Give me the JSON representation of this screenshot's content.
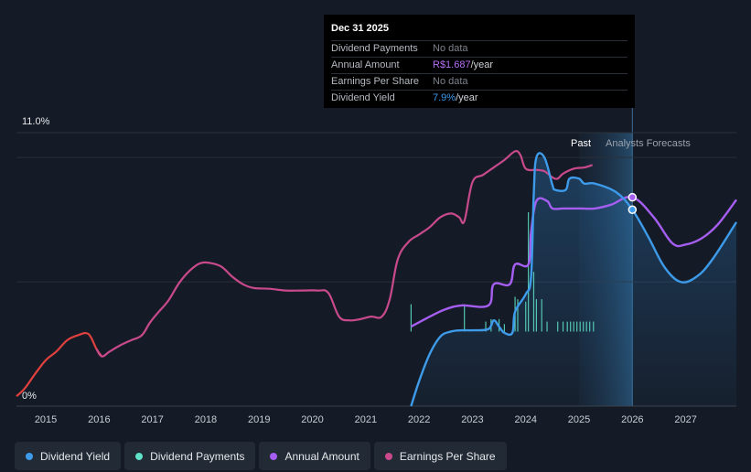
{
  "tooltip": {
    "date": "Dec 31 2025",
    "rows": [
      {
        "name": "Dividend Payments",
        "value": "No data"
      },
      {
        "name": "Annual Amount",
        "value": "R$1.687",
        "suffix": "/year",
        "accent": "#b46ff5"
      },
      {
        "name": "Earnings Per Share",
        "value": "No data"
      },
      {
        "name": "Dividend Yield",
        "value": "7.9%",
        "suffix": "/year",
        "accent": "#3d9bea"
      }
    ]
  },
  "regions": {
    "past": "Past",
    "forecast": "Analysts Forecasts"
  },
  "legend": [
    {
      "label": "Dividend Yield",
      "color": "#3d9bea"
    },
    {
      "label": "Dividend Payments",
      "color": "#5fe3c8"
    },
    {
      "label": "Annual Amount",
      "color": "#a65ef2"
    },
    {
      "label": "Earnings Per Share",
      "color": "#c94a8c"
    }
  ],
  "chart_data": {
    "type": "line",
    "y_axis": {
      "min": 0,
      "max": 11,
      "unit": "%",
      "labels": [
        "11.0%",
        "0%"
      ]
    },
    "x_axis": {
      "min": 2014.45,
      "max": 2027.95,
      "ticks": [
        "2015",
        "2016",
        "2017",
        "2018",
        "2019",
        "2020",
        "2021",
        "2022",
        "2023",
        "2024",
        "2025",
        "2026",
        "2027"
      ]
    },
    "past_until": 2025.0,
    "cursor_x": 2026.0,
    "series": [
      {
        "name": "Dividend Yield",
        "color": "#3d9bea",
        "points": [
          [
            2021.85,
            0
          ],
          [
            2022.0,
            1.0
          ],
          [
            2022.2,
            2.1
          ],
          [
            2022.4,
            2.8
          ],
          [
            2022.6,
            3.0
          ],
          [
            2022.8,
            3.05
          ],
          [
            2023.0,
            3.05
          ],
          [
            2023.3,
            3.1
          ],
          [
            2023.4,
            3.45
          ],
          [
            2023.5,
            3.2
          ],
          [
            2023.6,
            2.95
          ],
          [
            2023.75,
            2.95
          ],
          [
            2023.8,
            3.8
          ],
          [
            2024.0,
            4.5
          ],
          [
            2024.1,
            5.2
          ],
          [
            2024.15,
            8.5
          ],
          [
            2024.2,
            10.0
          ],
          [
            2024.35,
            10.0
          ],
          [
            2024.5,
            8.9
          ],
          [
            2024.55,
            8.7
          ],
          [
            2024.75,
            8.7
          ],
          [
            2024.82,
            9.15
          ],
          [
            2025.0,
            9.15
          ],
          [
            2025.1,
            8.95
          ],
          [
            2025.3,
            8.95
          ],
          [
            2025.7,
            8.6
          ],
          [
            2026.0,
            7.9
          ],
          [
            2026.3,
            6.8
          ],
          [
            2026.6,
            5.6
          ],
          [
            2026.9,
            5.0
          ],
          [
            2027.2,
            5.2
          ],
          [
            2027.5,
            5.9
          ],
          [
            2027.95,
            7.4
          ]
        ]
      },
      {
        "name": "Annual Amount",
        "color": "#a65ef2",
        "points": [
          [
            2021.85,
            3.2
          ],
          [
            2022.2,
            3.6
          ],
          [
            2022.5,
            3.9
          ],
          [
            2022.8,
            4.05
          ],
          [
            2023.3,
            4.05
          ],
          [
            2023.4,
            4.9
          ],
          [
            2023.7,
            4.9
          ],
          [
            2023.8,
            5.7
          ],
          [
            2024.05,
            5.7
          ],
          [
            2024.1,
            7.0
          ],
          [
            2024.2,
            8.25
          ],
          [
            2024.4,
            8.25
          ],
          [
            2024.5,
            7.95
          ],
          [
            2024.7,
            7.95
          ],
          [
            2025.0,
            7.95
          ],
          [
            2025.3,
            7.95
          ],
          [
            2025.6,
            8.1
          ],
          [
            2026.0,
            8.4
          ],
          [
            2026.4,
            7.6
          ],
          [
            2026.75,
            6.55
          ],
          [
            2027.0,
            6.5
          ],
          [
            2027.3,
            6.75
          ],
          [
            2027.6,
            7.3
          ],
          [
            2027.95,
            8.3
          ]
        ]
      },
      {
        "name": "Earnings Per Share",
        "color": "#c94a8c",
        "points": [
          [
            2014.45,
            0.4
          ],
          [
            2014.6,
            0.7
          ],
          [
            2014.8,
            1.3
          ],
          [
            2015.0,
            1.85
          ],
          [
            2015.2,
            2.2
          ],
          [
            2015.4,
            2.65
          ],
          [
            2015.6,
            2.85
          ],
          [
            2015.8,
            2.9
          ],
          [
            2015.95,
            2.3
          ],
          [
            2016.05,
            2.0
          ],
          [
            2016.2,
            2.2
          ],
          [
            2016.4,
            2.45
          ],
          [
            2016.6,
            2.65
          ],
          [
            2016.8,
            2.85
          ],
          [
            2016.95,
            3.35
          ],
          [
            2017.1,
            3.75
          ],
          [
            2017.3,
            4.25
          ],
          [
            2017.5,
            4.95
          ],
          [
            2017.7,
            5.45
          ],
          [
            2017.9,
            5.75
          ],
          [
            2018.1,
            5.75
          ],
          [
            2018.3,
            5.6
          ],
          [
            2018.5,
            5.2
          ],
          [
            2018.7,
            4.9
          ],
          [
            2018.9,
            4.75
          ],
          [
            2019.2,
            4.72
          ],
          [
            2019.5,
            4.65
          ],
          [
            2019.8,
            4.65
          ],
          [
            2020.1,
            4.65
          ],
          [
            2020.3,
            4.55
          ],
          [
            2020.5,
            3.6
          ],
          [
            2020.7,
            3.45
          ],
          [
            2020.9,
            3.5
          ],
          [
            2021.1,
            3.6
          ],
          [
            2021.3,
            3.6
          ],
          [
            2021.45,
            4.3
          ],
          [
            2021.6,
            5.9
          ],
          [
            2021.8,
            6.6
          ],
          [
            2022.0,
            6.9
          ],
          [
            2022.2,
            7.2
          ],
          [
            2022.4,
            7.6
          ],
          [
            2022.6,
            7.75
          ],
          [
            2022.75,
            7.6
          ],
          [
            2022.85,
            7.45
          ],
          [
            2023.0,
            9.0
          ],
          [
            2023.2,
            9.3
          ],
          [
            2023.4,
            9.6
          ],
          [
            2023.6,
            9.9
          ],
          [
            2023.8,
            10.25
          ],
          [
            2023.9,
            10.1
          ],
          [
            2024.0,
            9.55
          ],
          [
            2024.2,
            9.5
          ],
          [
            2024.35,
            9.45
          ],
          [
            2024.5,
            9.2
          ],
          [
            2024.6,
            9.15
          ],
          [
            2024.7,
            9.35
          ],
          [
            2024.9,
            9.55
          ],
          [
            2025.1,
            9.6
          ],
          [
            2025.25,
            9.7
          ]
        ]
      }
    ],
    "payments": {
      "name": "Dividend Payments",
      "color": "#5fe3c8",
      "bars": [
        [
          2021.85,
          4.1
        ],
        [
          2022.85,
          4.1
        ],
        [
          2023.25,
          3.4
        ],
        [
          2023.35,
          3.5
        ],
        [
          2023.5,
          3.5
        ],
        [
          2023.6,
          3.3
        ],
        [
          2023.8,
          4.4
        ],
        [
          2023.85,
          4.3
        ],
        [
          2024.0,
          4.2
        ],
        [
          2024.05,
          7.8
        ],
        [
          2024.15,
          5.4
        ],
        [
          2024.2,
          4.3
        ],
        [
          2024.3,
          4.3
        ],
        [
          2024.4,
          3.4
        ],
        [
          2024.6,
          3.4
        ],
        [
          2024.7,
          3.4
        ],
        [
          2024.78,
          3.4
        ],
        [
          2024.84,
          3.4
        ],
        [
          2024.9,
          3.4
        ],
        [
          2024.96,
          3.4
        ],
        [
          2025.02,
          3.4
        ],
        [
          2025.08,
          3.4
        ],
        [
          2025.14,
          3.4
        ],
        [
          2025.2,
          3.4
        ],
        [
          2025.27,
          3.4
        ]
      ]
    }
  }
}
